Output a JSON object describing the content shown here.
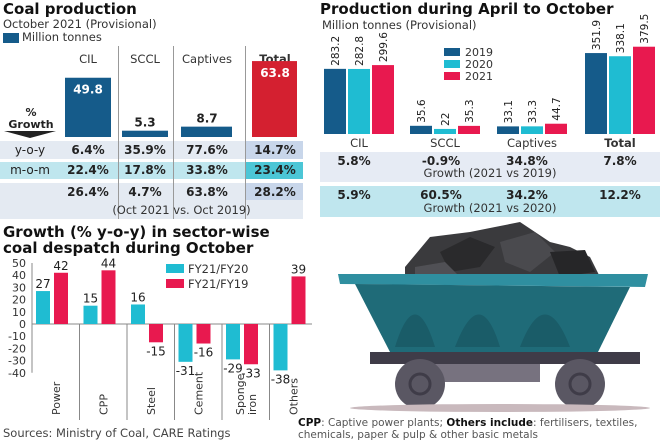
{
  "colors": {
    "navy": "#155b8a",
    "red": "#d42030",
    "cyan": "#1fbcd2",
    "pink": "#e8194f"
  },
  "panel1": {
    "title": "Coal production",
    "subtitle": "October 2021 (Provisional)",
    "legend": "Million tonnes",
    "growth_label_1": "%",
    "growth_label_2": "Growth",
    "rows": [
      {
        "label": "y-o-y",
        "values": [
          "6.4%",
          "35.9%",
          "77.6%",
          "14.7%"
        ]
      },
      {
        "label": "m-o-m",
        "values": [
          "22.4%",
          "17.8%",
          "33.8%",
          "23.4%"
        ]
      },
      {
        "label": "",
        "values": [
          "26.4%",
          "4.7%",
          "63.8%",
          "28.2%"
        ]
      }
    ],
    "note": "(Oct 2021 vs. Oct 2019)"
  },
  "panel2": {
    "title": "Production during April to October",
    "subtitle": "Million tonnes  (Provisional)",
    "row1": {
      "values": [
        "5.8%",
        "-0.9%",
        "34.8%",
        "7.8%"
      ],
      "caption": "Growth (2021 vs 2019)"
    },
    "row2": {
      "values": [
        "5.9%",
        "60.5%",
        "34.2%",
        "12.2%"
      ],
      "caption": "Growth (2021 vs 2020)"
    }
  },
  "panel3": {
    "title_1": "Growth (% y-o-y) in sector-wise",
    "title_2": "coal despatch during October"
  },
  "sources": "Sources: Ministry of Coal,  CARE Ratings",
  "footnote": {
    "cpp_key": "CPP",
    "cpp_text": ": Captive power plants; ",
    "others_key": "Others include",
    "others_text": ": fertilisers, textiles, chemicals, paper & pulp & other basic metals"
  },
  "chart_data": [
    {
      "type": "bar",
      "title": "Coal production",
      "ylabel": "Million tonnes",
      "categories": [
        "CIL",
        "SCCL",
        "Captives",
        "Total"
      ],
      "values": [
        49.8,
        5.3,
        8.7,
        63.8
      ],
      "labels": [
        "49.8",
        "5.3",
        "8.7",
        "63.8"
      ]
    },
    {
      "type": "bar",
      "title": "Production during April to October",
      "categories": [
        "CIL",
        "SCCL",
        "Captives",
        "Total"
      ],
      "series": [
        {
          "name": "2019",
          "values": [
            283.2,
            35.6,
            33.1,
            351.9
          ]
        },
        {
          "name": "2020",
          "values": [
            282.8,
            22,
            33.3,
            338.1
          ]
        },
        {
          "name": "2021",
          "values": [
            299.6,
            35.3,
            44.7,
            379.5
          ]
        }
      ],
      "labels": [
        [
          "283.2",
          "35.6",
          "33.1",
          "351.9"
        ],
        [
          "282.8",
          "22",
          "33.3",
          "338.1"
        ],
        [
          "299.6",
          "35.3",
          "44.7",
          "379.5"
        ]
      ]
    },
    {
      "type": "bar",
      "title": "Growth (% y-o-y) in sector-wise coal despatch during October",
      "categories": [
        "Power",
        "CPP",
        "Steel",
        "Cement",
        "Sponge iron",
        "Others"
      ],
      "series": [
        {
          "name": "FY21/FY20",
          "values": [
            27,
            15,
            16,
            -31,
            -29,
            -38
          ]
        },
        {
          "name": "FY21/FY19",
          "values": [
            42,
            44,
            -15,
            -16,
            -33,
            39
          ]
        }
      ],
      "ylim": [
        -40,
        50
      ],
      "yticks": [
        "50",
        "40",
        "30",
        "20",
        "10",
        "0",
        "-10",
        "-20",
        "-30",
        "-40"
      ],
      "legend": "top-center"
    }
  ]
}
